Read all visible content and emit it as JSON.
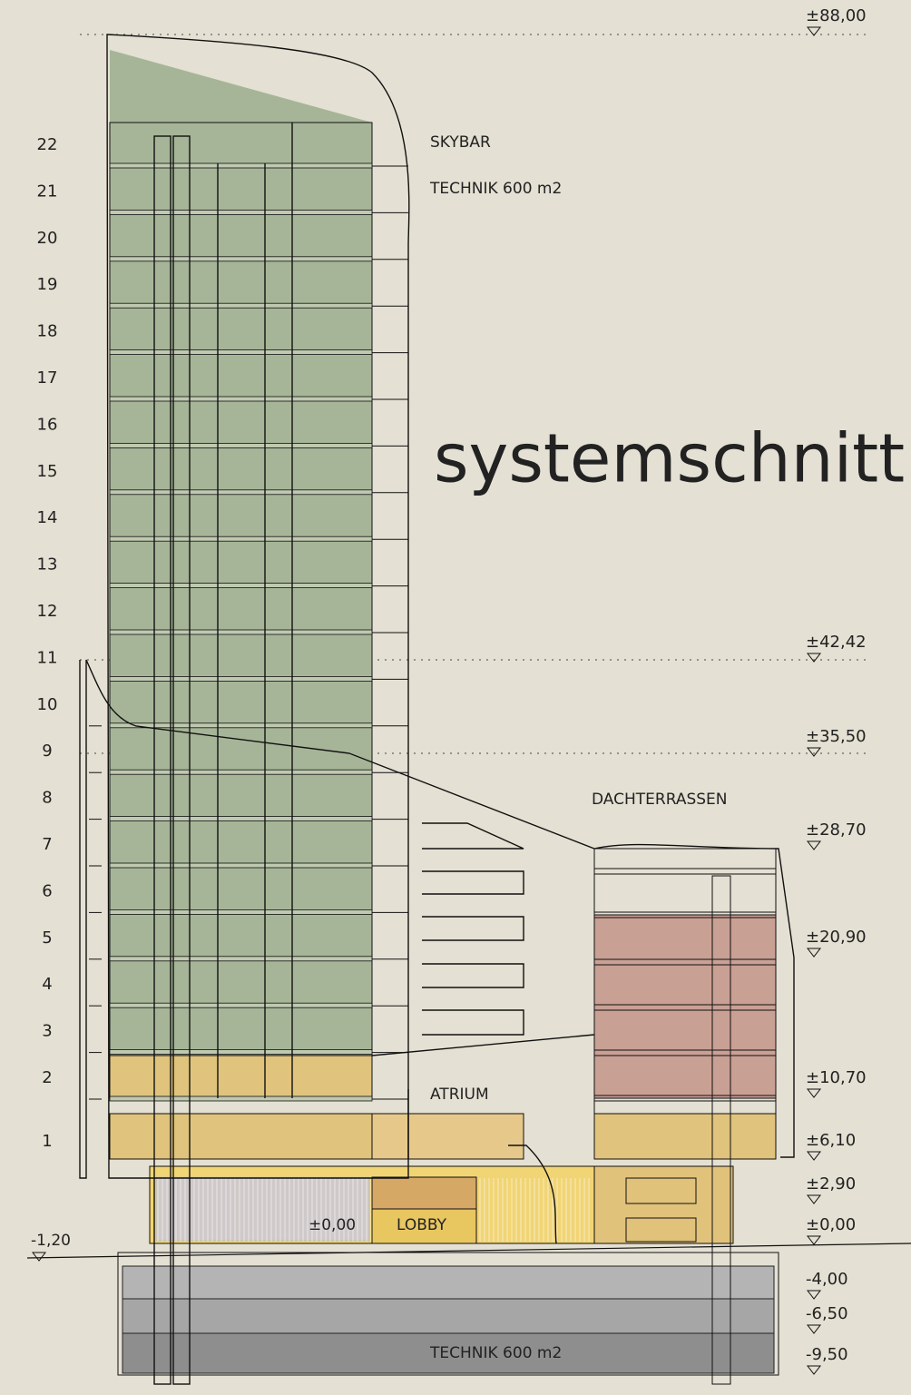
{
  "title": "systemschnitt",
  "floor_numbers": [
    "22",
    "21",
    "20",
    "19",
    "18",
    "17",
    "16",
    "15",
    "14",
    "13",
    "12",
    "11",
    "10",
    "9",
    "8",
    "7",
    "6",
    "5",
    "4",
    "3",
    "2",
    "1"
  ],
  "labels": {
    "skybar": "SKYBAR",
    "technik_top": "TECHNIK 600 m2",
    "dachterrassen": "DACHTERRASSEN",
    "atrium": "ATRIUM",
    "lobby": "LOBBY",
    "zero_inside": "±0,00",
    "technik_bottom": "TECHNIK 600 m2"
  },
  "elevations": [
    "±88,00",
    "±42,42",
    "±35,50",
    "±28,70",
    "±20,90",
    "±10,70",
    "±6,10",
    "±2,90",
    "±0,00",
    "-4,00",
    "-6,50",
    "-9,50"
  ],
  "left_elevation": "-1,20"
}
